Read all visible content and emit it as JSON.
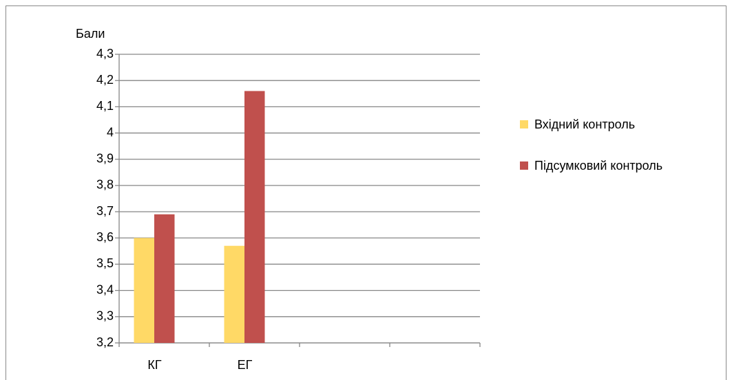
{
  "chart_data": {
    "type": "bar",
    "y_label": "Бали",
    "categories": [
      "КГ",
      "ЕГ",
      null,
      null
    ],
    "series": [
      {
        "name": "Вхідний контроль",
        "color": "#ffd966",
        "values": [
          3.6,
          3.57,
          null,
          null
        ]
      },
      {
        "name": "Підсумковий контроль",
        "color": "#c0504d",
        "values": [
          3.69,
          4.16,
          null,
          null
        ]
      }
    ],
    "ylim": [
      3.2,
      4.3
    ],
    "yticks": [
      {
        "value": 3.2,
        "label": "3,2"
      },
      {
        "value": 3.3,
        "label": "3,3"
      },
      {
        "value": 3.4,
        "label": "3,4"
      },
      {
        "value": 3.5,
        "label": "3,5"
      },
      {
        "value": 3.6,
        "label": "3,6"
      },
      {
        "value": 3.7,
        "label": "3,7"
      },
      {
        "value": 3.8,
        "label": "3,8"
      },
      {
        "value": 3.9,
        "label": "3,9"
      },
      4,
      {
        "value": 4.1,
        "label": "4,1"
      },
      {
        "value": 4.2,
        "label": "4,2"
      },
      {
        "value": 4.3,
        "label": "4,3"
      }
    ],
    "grid": true,
    "legend": "right"
  }
}
